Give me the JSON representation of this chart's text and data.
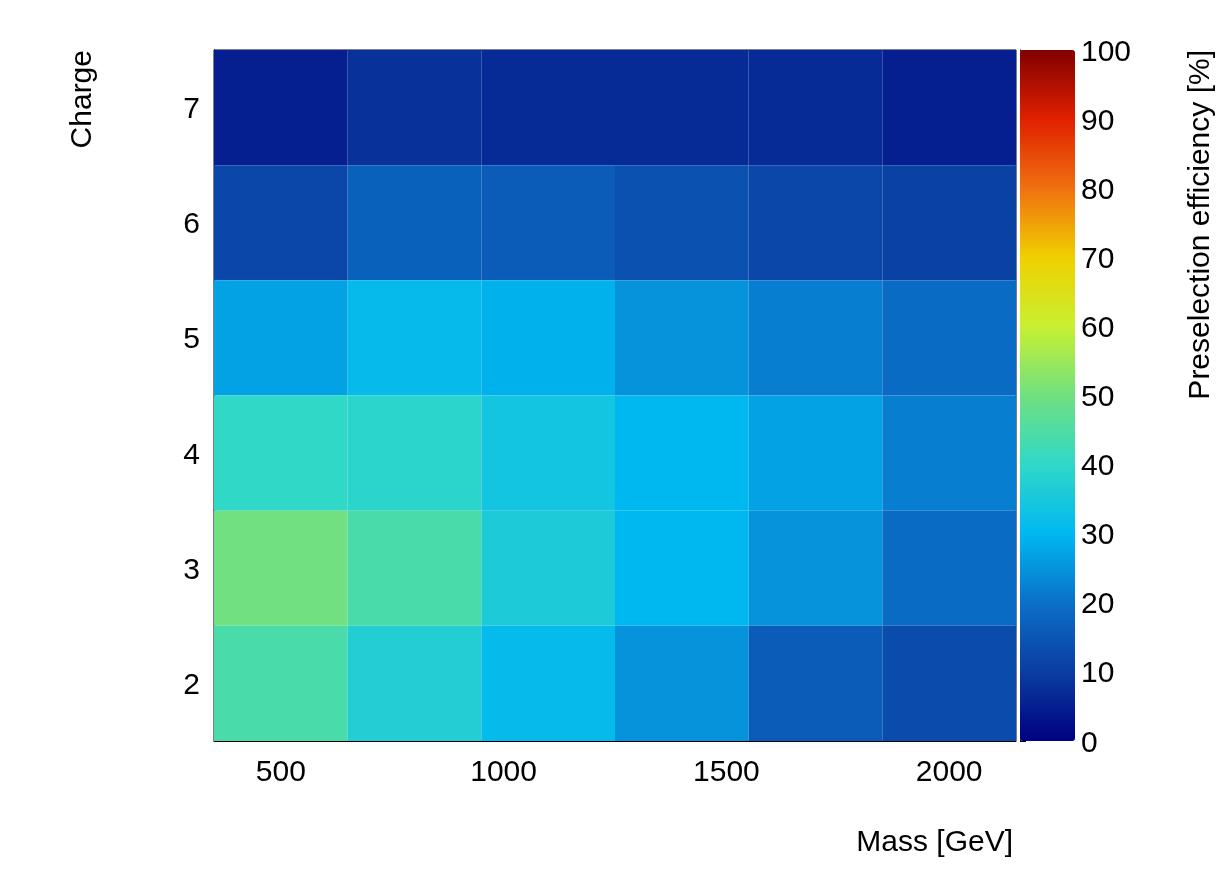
{
  "chart_data": {
    "type": "heatmap",
    "xlabel": "Mass [GeV]",
    "ylabel": "Charge",
    "clabel": "Preselection efficiency [%]",
    "x": [
      500,
      800,
      1100,
      1400,
      1700,
      2000
    ],
    "xlim": [
      350,
      2150
    ],
    "xticks": [
      500,
      1000,
      1500,
      2000
    ],
    "y_categories": [
      "7",
      "6",
      "5",
      "4",
      "3",
      "2"
    ],
    "cells": [
      [
        5,
        8,
        7,
        7,
        7,
        5
      ],
      [
        12,
        17,
        16,
        14,
        12,
        11
      ],
      [
        27,
        31,
        29,
        25,
        22,
        19
      ],
      [
        40,
        39,
        34,
        30,
        27,
        22
      ],
      [
        50,
        44,
        36,
        30,
        25,
        19
      ],
      [
        44,
        37,
        31,
        25,
        16,
        13
      ]
    ],
    "clim": [
      0,
      100
    ],
    "cticks": [
      0,
      10,
      20,
      30,
      40,
      50,
      60,
      70,
      80,
      90,
      100
    ]
  }
}
